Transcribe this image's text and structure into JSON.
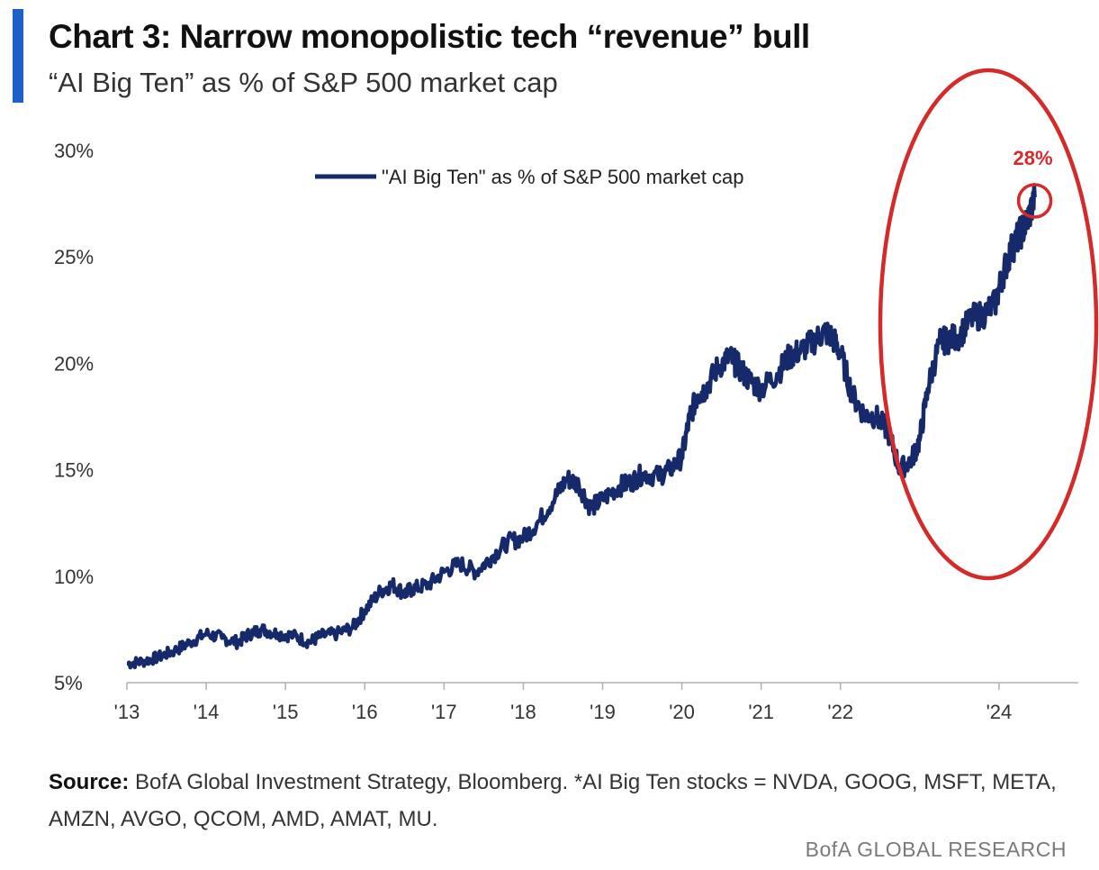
{
  "header": {
    "title": "Chart 3: Narrow monopolistic tech “revenue” bull",
    "subtitle": "“AI Big Ten” as % of S&P 500 market cap"
  },
  "footer": {
    "source_label": "Source:",
    "source_text": "BofA Global Investment Strategy, Bloomberg. *AI Big Ten stocks = NVDA, GOOG, MSFT, META, AMZN, AVGO, QCOM, AMD, AMAT, MU.",
    "brand": "BofA GLOBAL RESEARCH"
  },
  "colors": {
    "accent": "#1f5fc9",
    "line": "#162a6b",
    "highlight": "#d42a2a"
  },
  "chart_data": {
    "type": "line",
    "title": "",
    "xlabel": "",
    "ylabel": "",
    "ylim": [
      5,
      30
    ],
    "xlim": [
      2013,
      2025
    ],
    "y_ticks": [
      5,
      10,
      15,
      20,
      25,
      30
    ],
    "y_tick_labels": [
      "5%",
      "10%",
      "15%",
      "20%",
      "25%",
      "30%"
    ],
    "x_ticks": [
      2013,
      2014,
      2015,
      2016,
      2017,
      2018,
      2019,
      2020,
      2021,
      2022,
      2024
    ],
    "x_tick_labels": [
      "'13",
      "'14",
      "'15",
      "'16",
      "'17",
      "'18",
      "'19",
      "'20",
      "'21",
      "'22",
      "'24"
    ],
    "grid": false,
    "legend": {
      "position": "top",
      "entries": [
        "\"AI Big Ten\" as % of S&P 500 market cap"
      ]
    },
    "series": [
      {
        "name": "\"AI Big Ten\" as % of S&P 500 market cap",
        "x": [
          2013.0,
          2013.2,
          2013.4,
          2013.6,
          2013.8,
          2014.0,
          2014.2,
          2014.4,
          2014.55,
          2014.7,
          2014.9,
          2015.1,
          2015.3,
          2015.45,
          2015.65,
          2015.85,
          2016.0,
          2016.2,
          2016.35,
          2016.5,
          2016.6,
          2016.8,
          2017.0,
          2017.2,
          2017.4,
          2017.6,
          2017.8,
          2018.0,
          2018.2,
          2018.4,
          2018.55,
          2018.7,
          2018.85,
          2019.0,
          2019.2,
          2019.35,
          2019.5,
          2019.7,
          2019.85,
          2020.0,
          2020.1,
          2020.2,
          2020.3,
          2020.45,
          2020.6,
          2020.7,
          2020.85,
          2021.0,
          2021.2,
          2021.35,
          2021.5,
          2021.65,
          2021.8,
          2021.9,
          2022.0,
          2022.15,
          2022.3,
          2022.45,
          2022.6,
          2022.75,
          2022.9,
          2023.0,
          2023.1,
          2023.25,
          2023.35,
          2023.5,
          2023.65,
          2023.8,
          2023.95,
          2024.05,
          2024.15,
          2024.25,
          2024.35,
          2024.45
        ],
        "values": [
          5.9,
          6.0,
          6.2,
          6.5,
          6.9,
          7.3,
          7.1,
          6.9,
          7.3,
          7.5,
          7.3,
          7.2,
          6.9,
          7.2,
          7.3,
          7.6,
          8.4,
          9.3,
          9.6,
          9.2,
          9.4,
          9.6,
          10.2,
          10.6,
          10.2,
          10.9,
          11.6,
          11.8,
          12.6,
          13.7,
          14.6,
          14.3,
          13.2,
          13.6,
          14.2,
          14.4,
          14.8,
          14.7,
          15.0,
          15.6,
          17.5,
          18.5,
          18.8,
          19.8,
          20.3,
          19.9,
          19.2,
          18.8,
          19.5,
          20.3,
          20.6,
          21.0,
          21.5,
          21.2,
          20.5,
          18.5,
          17.6,
          17.5,
          16.8,
          15.0,
          15.5,
          16.4,
          18.8,
          21.0,
          21.1,
          21.3,
          22.1,
          22.3,
          22.8,
          24.2,
          25.3,
          26.0,
          26.6,
          27.8
        ]
      }
    ],
    "annotations": [
      {
        "label": "28%",
        "x": 2024.45,
        "y": 27.8
      }
    ]
  }
}
